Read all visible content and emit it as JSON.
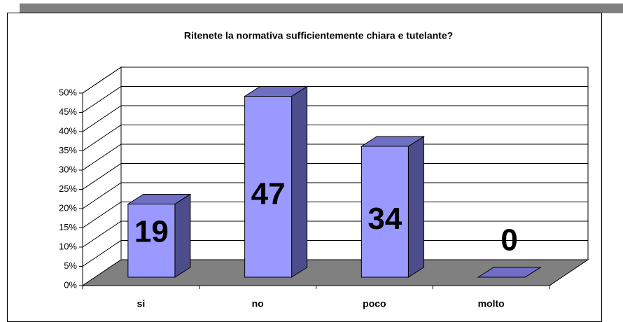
{
  "chart_data": {
    "type": "bar3d",
    "title": "Ritenete la normativa sufficientemente chiara e tutelante?",
    "categories": [
      "si",
      "no",
      "poco",
      "molto"
    ],
    "values": [
      19,
      47,
      34,
      0
    ],
    "color": "#9999ff",
    "ylim": [
      0,
      50
    ],
    "yticks": [
      {
        "value": 0,
        "label": "0%"
      },
      {
        "value": 5,
        "label": "5%"
      },
      {
        "value": 10,
        "label": "10%"
      },
      {
        "value": 15,
        "label": "15%"
      },
      {
        "value": 20,
        "label": "20%"
      },
      {
        "value": 25,
        "label": "25%"
      },
      {
        "value": 30,
        "label": "30%"
      },
      {
        "value": 35,
        "label": "35%"
      },
      {
        "value": 40,
        "label": "40%"
      },
      {
        "value": 45,
        "label": "45%"
      },
      {
        "value": 50,
        "label": "50%"
      }
    ],
    "grid": true
  }
}
